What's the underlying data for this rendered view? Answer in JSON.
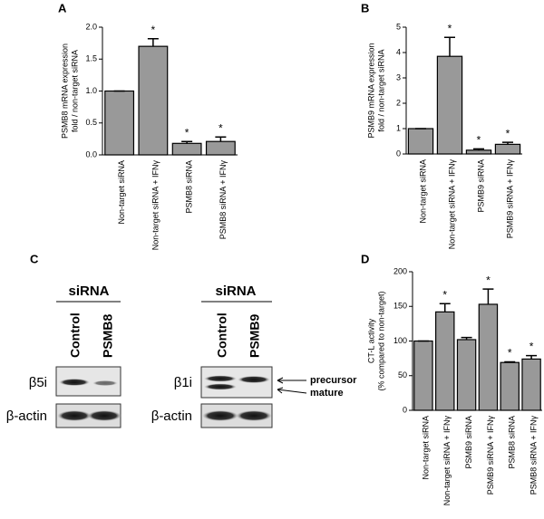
{
  "chart_data": [
    {
      "type": "bar",
      "panel": "A",
      "ylabel": [
        "PSMB8 mRNA expression",
        "fold / non-target siRNA"
      ],
      "categories": [
        "Non-target siRNA",
        "Non-target siRNA + IFNγ",
        "PSMB8 siRNA",
        "PSMB8 siRNA + IFNγ"
      ],
      "values": [
        1.0,
        1.7,
        0.18,
        0.21
      ],
      "errors": [
        0,
        0.12,
        0.03,
        0.07
      ],
      "significance": [
        null,
        "*",
        "*",
        "*"
      ],
      "color": "#999999",
      "ylim": [
        0,
        2.0
      ],
      "yticks": [
        {
          "value": 0,
          "label": "0.0"
        },
        0.5,
        {
          "value": 1,
          "label": "1.0"
        },
        1.5,
        {
          "value": 2,
          "label": "2.0"
        }
      ]
    },
    {
      "type": "bar",
      "panel": "B",
      "ylabel": [
        "PSMB9 mRNA expression",
        "fold / non-target siRNA"
      ],
      "categories": [
        "Non-target siRNA",
        "Non-target siRNA + IFNγ",
        "PSMB9 siRNA",
        "PSMB9 siRNA + IFNγ"
      ],
      "values": [
        1.0,
        3.85,
        0.15,
        0.38
      ],
      "errors": [
        0,
        0.75,
        0.05,
        0.08
      ],
      "significance": [
        null,
        "*",
        "*",
        "*"
      ],
      "color": "#999999",
      "ylim": [
        0,
        5
      ],
      "yticks": [
        0,
        1,
        2,
        3,
        4,
        5
      ]
    },
    {
      "type": "bar",
      "panel": "D",
      "ylabel": [
        "CT-L activity",
        "(% compared to non-target)"
      ],
      "categories": [
        "Non-target siRNA",
        "Non-target siRNA + IFNγ",
        "PSMB9 siRNA",
        "PSMB9 siRNA + IFNγ",
        "PSMB8 siRNA",
        "PSMB8 siRNA + IFNγ"
      ],
      "values": [
        100,
        142,
        102,
        153,
        69,
        74
      ],
      "errors": [
        0,
        12,
        3,
        22,
        1,
        5
      ],
      "significance": [
        null,
        "*",
        null,
        "*",
        "*",
        "*"
      ],
      "color": "#999999",
      "ylim": [
        0,
        200
      ],
      "yticks": [
        0,
        50,
        100,
        150,
        200
      ]
    }
  ],
  "blots": {
    "panel": "C",
    "left": {
      "header": "siRNA",
      "lanes": [
        "Control",
        "PSMB8"
      ],
      "rows": [
        "β5i",
        "β-actin"
      ]
    },
    "right": {
      "header": "siRNA",
      "lanes": [
        "Control",
        "PSMB9"
      ],
      "rows": [
        "β1i",
        "β-actin"
      ],
      "annotations": [
        "precursor",
        "mature"
      ]
    }
  }
}
